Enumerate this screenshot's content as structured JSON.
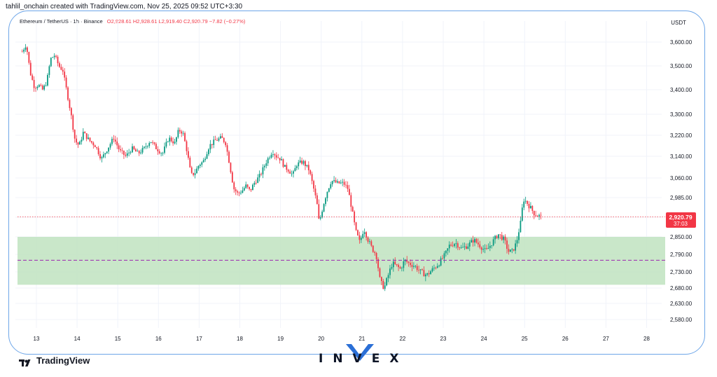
{
  "header": {
    "credit": "tahlil_onchain created with TradingView.com, Nov 25, 2025 09:52 UTC+3:30",
    "symbol": "Ethereum / TetherUS · 1h · Binance",
    "ohlc": "O2,928.61  H2,928.61  L2,919.40  C2,920.79  −7.82 (−0.27%)",
    "currency": "USDT"
  },
  "price_label": {
    "value": "2,920.79",
    "countdown": "37:03"
  },
  "branding": {
    "tradingview": "TradingView",
    "invex": "INVEX"
  },
  "colors": {
    "up": "#089981",
    "down": "#f23645",
    "zone": "#bfe3bf",
    "frame": "#6ea6e8",
    "invex_accent": "#2b6fd6"
  },
  "chart_data": {
    "type": "candlestick",
    "symbol": "Ethereum / TetherUS",
    "timeframe": "1h",
    "exchange": "Binance",
    "ylim": [
      2540,
      3660
    ],
    "y_ticks": [
      3600,
      3500,
      3400,
      3300,
      3220,
      3140,
      3060,
      2985,
      2920,
      2850,
      2790,
      2730,
      2680,
      2630,
      2580
    ],
    "y_tick_labels": [
      "3,600.00",
      "3,500.00",
      "3,400.00",
      "3,300.00",
      "3,220.00",
      "3,140.00",
      "3,060.00",
      "2,985.00",
      "2,920.00",
      "2,850.00",
      "2,790.00",
      "2,730.00",
      "2,680.00",
      "2,630.00",
      "2,580.00"
    ],
    "xlim": [
      12.6,
      28.3
    ],
    "x_ticks": [
      13,
      14,
      15,
      16,
      17,
      18,
      19,
      20,
      21,
      22,
      23,
      24,
      25,
      26,
      27,
      28
    ],
    "x_tick_labels": [
      "13",
      "14",
      "15",
      "16",
      "17",
      "18",
      "19",
      "20",
      "21",
      "22",
      "23",
      "24",
      "25",
      "26",
      "27",
      "28"
    ],
    "last_price": 2920.79,
    "support_zone": [
      2690,
      2850
    ],
    "support_midline": 2770,
    "price_path": [
      [
        12.65,
        3560
      ],
      [
        12.75,
        3590
      ],
      [
        12.85,
        3470
      ],
      [
        12.95,
        3410
      ],
      [
        13.05,
        3420
      ],
      [
        13.15,
        3400
      ],
      [
        13.25,
        3430
      ],
      [
        13.35,
        3530
      ],
      [
        13.45,
        3545
      ],
      [
        13.55,
        3500
      ],
      [
        13.65,
        3480
      ],
      [
        13.75,
        3390
      ],
      [
        13.85,
        3300
      ],
      [
        13.95,
        3200
      ],
      [
        14.05,
        3180
      ],
      [
        14.15,
        3230
      ],
      [
        14.3,
        3200
      ],
      [
        14.45,
        3180
      ],
      [
        14.6,
        3130
      ],
      [
        14.75,
        3170
      ],
      [
        14.9,
        3210
      ],
      [
        15.05,
        3160
      ],
      [
        15.2,
        3140
      ],
      [
        15.35,
        3170
      ],
      [
        15.5,
        3150
      ],
      [
        15.65,
        3170
      ],
      [
        15.8,
        3200
      ],
      [
        15.95,
        3170
      ],
      [
        16.1,
        3150
      ],
      [
        16.25,
        3210
      ],
      [
        16.4,
        3190
      ],
      [
        16.5,
        3240
      ],
      [
        16.6,
        3230
      ],
      [
        16.7,
        3160
      ],
      [
        16.8,
        3070
      ],
      [
        16.9,
        3080
      ],
      [
        17.0,
        3110
      ],
      [
        17.1,
        3120
      ],
      [
        17.25,
        3180
      ],
      [
        17.4,
        3200
      ],
      [
        17.55,
        3210
      ],
      [
        17.65,
        3190
      ],
      [
        17.75,
        3110
      ],
      [
        17.85,
        3020
      ],
      [
        17.95,
        3000
      ],
      [
        18.05,
        3010
      ],
      [
        18.15,
        3030
      ],
      [
        18.25,
        3010
      ],
      [
        18.35,
        3040
      ],
      [
        18.5,
        3070
      ],
      [
        18.65,
        3120
      ],
      [
        18.8,
        3160
      ],
      [
        18.9,
        3140
      ],
      [
        19.0,
        3130
      ],
      [
        19.1,
        3100
      ],
      [
        19.2,
        3090
      ],
      [
        19.3,
        3070
      ],
      [
        19.4,
        3110
      ],
      [
        19.55,
        3120
      ],
      [
        19.7,
        3090
      ],
      [
        19.8,
        3030
      ],
      [
        19.9,
        2960
      ],
      [
        19.95,
        2900
      ],
      [
        20.05,
        2960
      ],
      [
        20.15,
        3010
      ],
      [
        20.25,
        3050
      ],
      [
        20.4,
        3040
      ],
      [
        20.55,
        3040
      ],
      [
        20.65,
        3020
      ],
      [
        20.75,
        2950
      ],
      [
        20.85,
        2870
      ],
      [
        20.95,
        2830
      ],
      [
        21.05,
        2880
      ],
      [
        21.15,
        2840
      ],
      [
        21.25,
        2810
      ],
      [
        21.35,
        2790
      ],
      [
        21.45,
        2700
      ],
      [
        21.55,
        2680
      ],
      [
        21.65,
        2720
      ],
      [
        21.75,
        2760
      ],
      [
        21.85,
        2750
      ],
      [
        21.95,
        2740
      ],
      [
        22.05,
        2770
      ],
      [
        22.15,
        2760
      ],
      [
        22.3,
        2750
      ],
      [
        22.45,
        2730
      ],
      [
        22.6,
        2720
      ],
      [
        22.75,
        2740
      ],
      [
        22.9,
        2760
      ],
      [
        23.05,
        2790
      ],
      [
        23.15,
        2820
      ],
      [
        23.3,
        2830
      ],
      [
        23.45,
        2810
      ],
      [
        23.6,
        2820
      ],
      [
        23.75,
        2840
      ],
      [
        23.9,
        2820
      ],
      [
        24.05,
        2800
      ],
      [
        24.2,
        2830
      ],
      [
        24.35,
        2860
      ],
      [
        24.5,
        2840
      ],
      [
        24.6,
        2800
      ],
      [
        24.7,
        2800
      ],
      [
        24.8,
        2830
      ],
      [
        24.9,
        2900
      ],
      [
        24.97,
        2980
      ],
      [
        25.05,
        2970
      ],
      [
        25.15,
        2950
      ],
      [
        25.25,
        2930
      ],
      [
        25.35,
        2925
      ],
      [
        25.42,
        2921
      ]
    ]
  }
}
